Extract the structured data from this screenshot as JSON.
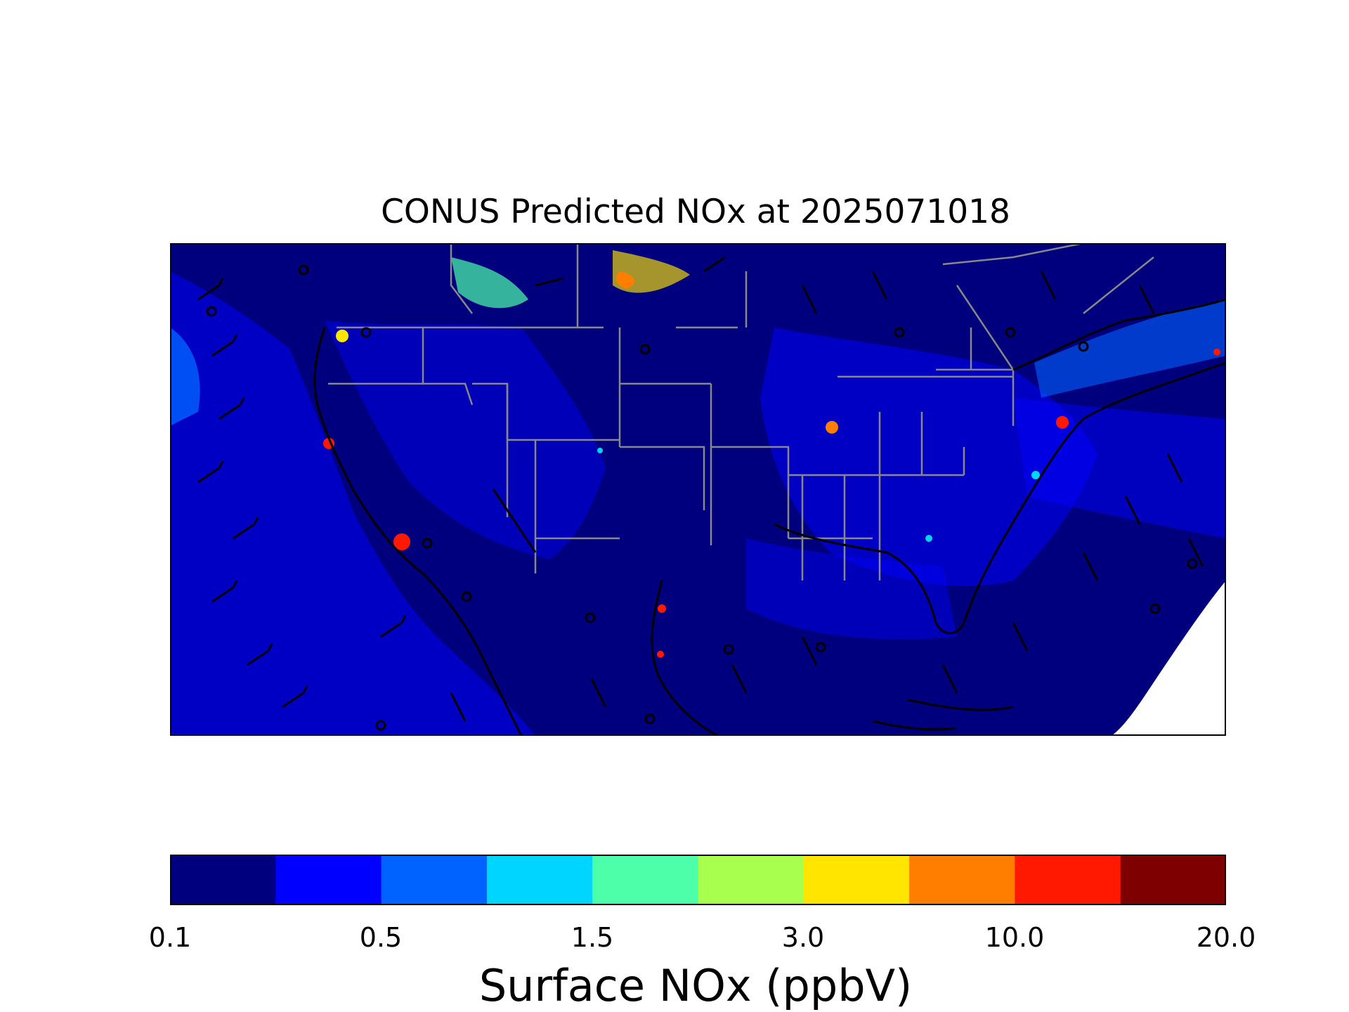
{
  "title": "CONUS Predicted NOx at 2025071018",
  "map": {
    "region": "CONUS",
    "field": "Surface NOx",
    "overlay": "wind barbs",
    "background_color": "#00007f",
    "boundary_color": "#888888",
    "coastline_color": "#000000"
  },
  "colorbar": {
    "label": "Surface NOx (ppbV)",
    "levels": [
      "0.1",
      "0.5",
      "1.5",
      "3.0",
      "10.0",
      "20.0"
    ],
    "colors": [
      "#00007f",
      "#0000ff",
      "#0063ff",
      "#00d5ff",
      "#4dffa9",
      "#a9ff4d",
      "#ffe500",
      "#ff7e00",
      "#ff1900",
      "#7f0000"
    ]
  },
  "chart_data": {
    "type": "heatmap",
    "title": "CONUS Predicted NOx at 2025071018",
    "colorbar_label": "Surface NOx (ppbV)",
    "colorbar_ticks": [
      0.1,
      0.5,
      1.5,
      3.0,
      10.0,
      20.0
    ],
    "colorbar_bins": 10
  }
}
